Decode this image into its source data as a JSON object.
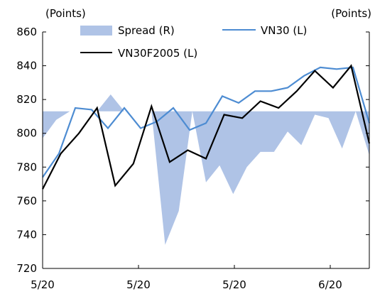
{
  "chart_data": {
    "type": "line",
    "left_axis_unit": "(Points)",
    "right_axis_unit": "(Points)",
    "ylim_left": [
      720,
      860
    ],
    "y_ticks_left": [
      720,
      740,
      760,
      780,
      800,
      820,
      840,
      860
    ],
    "x_tick_labels": [
      "5/20",
      "5/20",
      "5/20",
      "6/20"
    ],
    "legend_placement": "top",
    "grid": false,
    "colors": {
      "spread": "#AFC3E6",
      "vn30": "#4D8CD2",
      "vn30f": "#000000"
    },
    "baseline_left": 813,
    "series": [
      {
        "name": "Spread (R)",
        "axis": "right",
        "kind": "area",
        "values_left_scale": [
          797,
          808,
          813,
          813,
          813,
          823,
          813,
          813,
          813,
          734,
          754,
          813,
          771,
          781,
          764,
          780,
          789,
          789,
          801,
          793,
          811,
          809,
          791,
          813,
          787
        ]
      },
      {
        "name": "VN30 (L)",
        "axis": "left",
        "values": [
          774,
          788,
          815,
          814,
          803,
          815,
          803,
          807,
          815,
          802,
          806,
          822,
          818,
          825,
          825,
          827,
          834,
          839,
          838,
          839,
          806
        ]
      },
      {
        "name": "VN30F2005 (L)",
        "axis": "left",
        "values": [
          767,
          788,
          800,
          815,
          769,
          782,
          816,
          783,
          790,
          785,
          811,
          809,
          819,
          815,
          825,
          837,
          827,
          840,
          794
        ]
      }
    ]
  }
}
